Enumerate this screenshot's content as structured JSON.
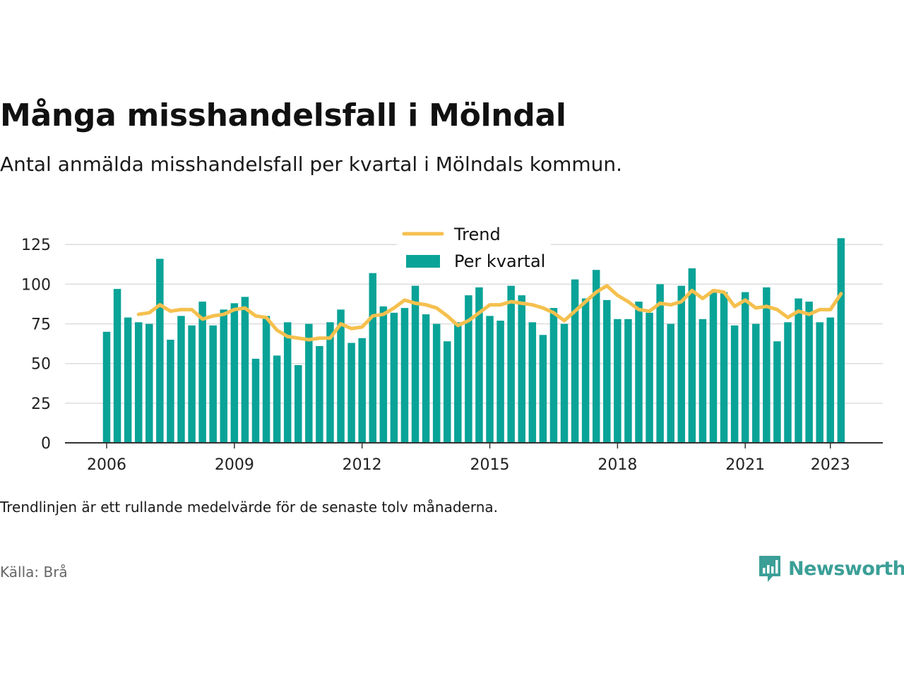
{
  "title": "Många misshandelsfall i Mölndal",
  "subtitle": "Antal anmälda misshandelsfall per kvartal i Mölndals kommun.",
  "note": "Trendlinjen är ett rullande medelvärde för de senaste tolv månaderna.",
  "source": "Källa: Brå",
  "brand": {
    "name": "Newsworthy",
    "icon": "newsworthy-logo-icon"
  },
  "colors": {
    "bar": "#0aa398",
    "trend": "#f5c04e",
    "grid": "#dddddd",
    "axis": "#333333"
  },
  "chart_data": {
    "type": "bar",
    "title": "",
    "xlabel": "",
    "ylabel": "",
    "ylim": [
      0,
      130
    ],
    "yticks": [
      0,
      25,
      50,
      75,
      100,
      125
    ],
    "xticks": [
      {
        "label": "2006",
        "year": 2006
      },
      {
        "label": "2009",
        "year": 2009
      },
      {
        "label": "2012",
        "year": 2012
      },
      {
        "label": "2015",
        "year": 2015
      },
      {
        "label": "2018",
        "year": 2018
      },
      {
        "label": "2021",
        "year": 2021
      },
      {
        "label": "2023",
        "year": 2023
      }
    ],
    "grid": true,
    "legend_position": "top-center",
    "x_start": {
      "year": 2006,
      "quarter": 1
    },
    "series": [
      {
        "name": "Per kvartal",
        "type": "bar",
        "values": [
          70,
          97,
          79,
          76,
          75,
          116,
          65,
          80,
          74,
          89,
          74,
          84,
          88,
          92,
          53,
          80,
          55,
          76,
          49,
          75,
          61,
          76,
          84,
          63,
          66,
          107,
          86,
          82,
          85,
          99,
          81,
          75,
          64,
          76,
          93,
          98,
          80,
          77,
          99,
          93,
          76,
          68,
          85,
          75,
          103,
          91,
          109,
          90,
          78,
          78,
          89,
          82,
          100,
          75,
          99,
          110,
          78,
          95,
          95,
          74,
          95,
          75,
          98,
          64,
          76,
          91,
          89,
          76,
          79,
          129
        ]
      },
      {
        "name": "Trend",
        "type": "line",
        "start_index": 3,
        "values": [
          81,
          82,
          87,
          83,
          84,
          84,
          78,
          80,
          81,
          84,
          85,
          80,
          79,
          71,
          67,
          66,
          65,
          66,
          66,
          75,
          72,
          73,
          80,
          81,
          85,
          90,
          88,
          87,
          85,
          80,
          74,
          77,
          82,
          87,
          87,
          89,
          88,
          87,
          85,
          82,
          77,
          83,
          89,
          95,
          99,
          93,
          89,
          84,
          83,
          88,
          87,
          89,
          96,
          91,
          96,
          95,
          86,
          90,
          85,
          86,
          84,
          79,
          83,
          81,
          84,
          84,
          94
        ]
      }
    ]
  }
}
